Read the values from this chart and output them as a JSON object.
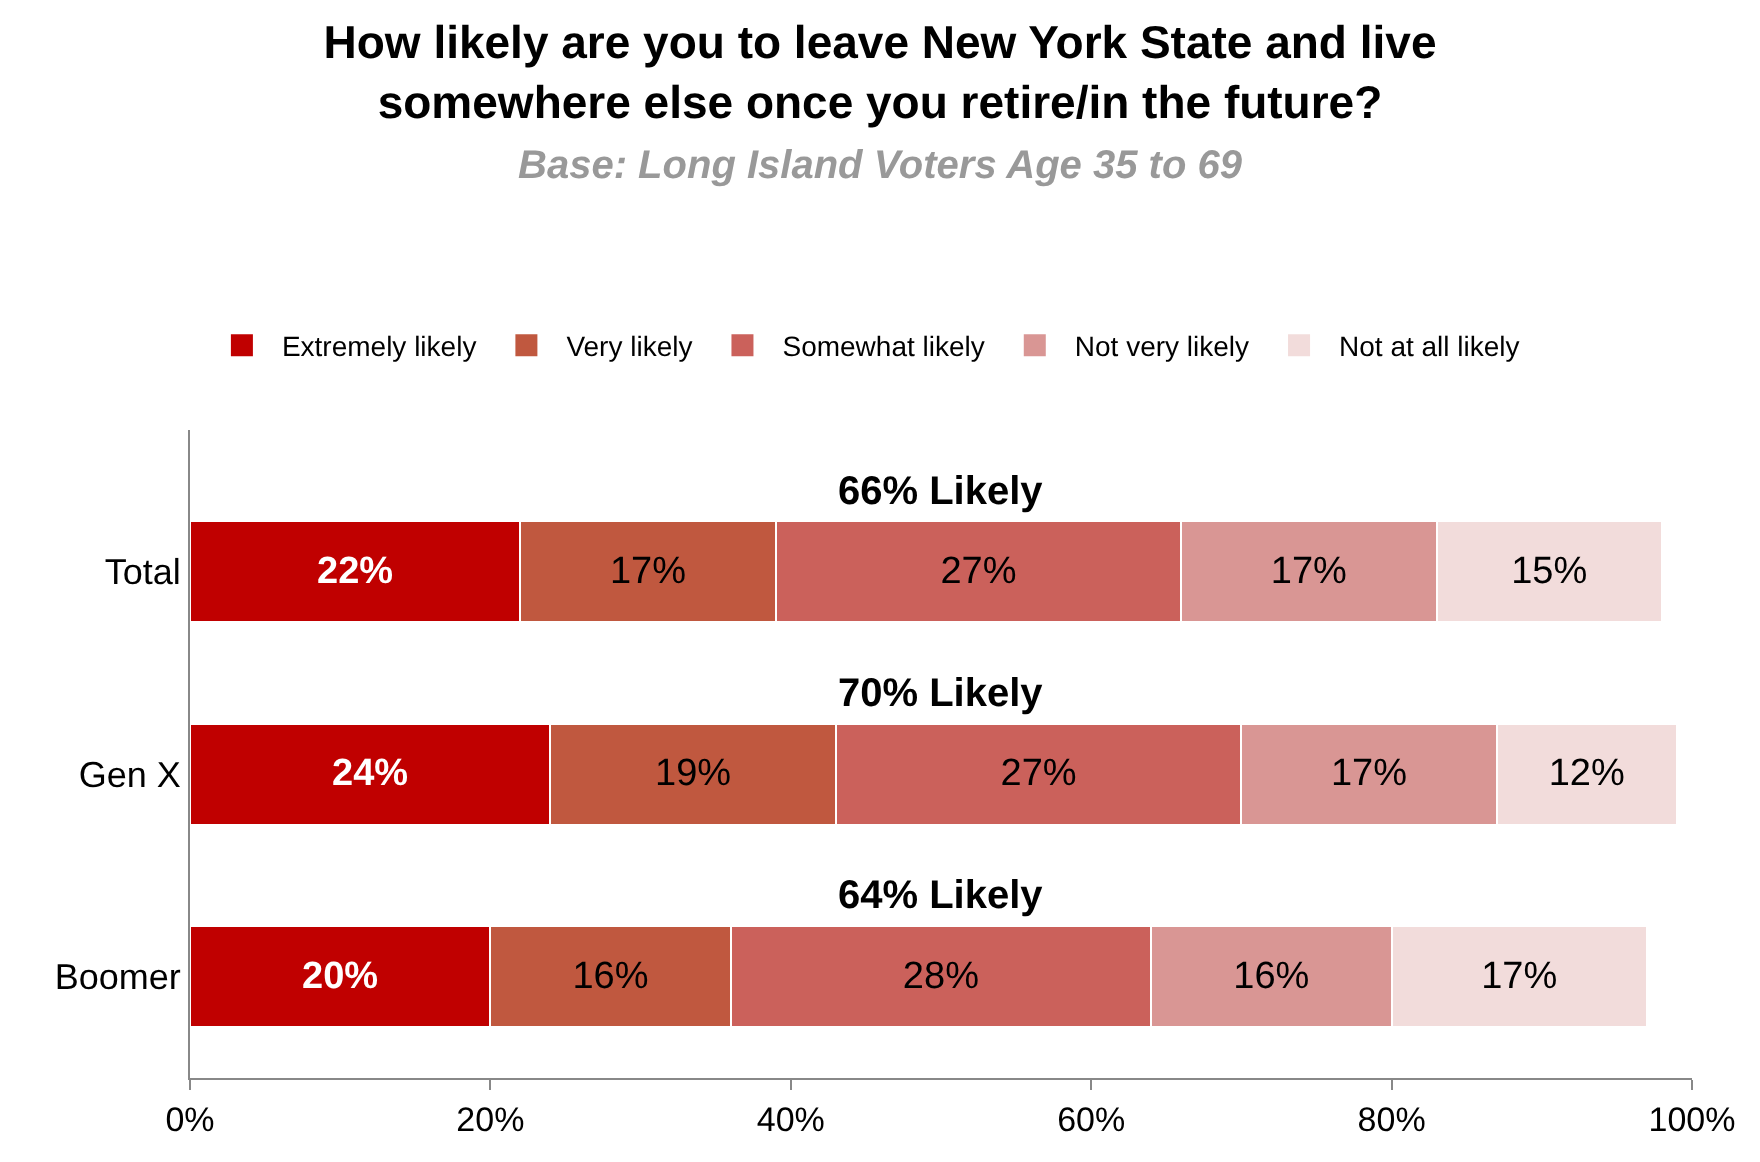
{
  "chart_data": {
    "type": "bar",
    "orientation": "horizontal",
    "stacked": true,
    "title": "How likely are you to leave New York State and live somewhere else once you retire/in the future?",
    "subtitle": "Base: Long Island Voters Age 35 to 69",
    "categories": [
      "Total",
      "Gen X",
      "Boomer"
    ],
    "series": [
      {
        "name": "Extremely likely",
        "color": "#c00000",
        "values": [
          22,
          24,
          20
        ],
        "value_labels": [
          "22%",
          "24%",
          "20%"
        ]
      },
      {
        "name": "Very likely",
        "color": "#c0583f",
        "values": [
          17,
          19,
          16
        ],
        "value_labels": [
          "17%",
          "19%",
          "16%"
        ]
      },
      {
        "name": "Somewhat likely",
        "color": "#cb615b",
        "values": [
          27,
          27,
          28
        ],
        "value_labels": [
          "27%",
          "27%",
          "28%"
        ]
      },
      {
        "name": "Not very likely",
        "color": "#d99694",
        "values": [
          17,
          17,
          16
        ],
        "value_labels": [
          "17%",
          "17%",
          "16%"
        ]
      },
      {
        "name": "Not at all likely",
        "color": "#f2dcdb",
        "values": [
          15,
          12,
          17
        ],
        "value_labels": [
          "15%",
          "12%",
          "17%"
        ]
      }
    ],
    "annotations": [
      "66% Likely",
      "70% Likely",
      "64% Likely"
    ],
    "xlim": [
      0,
      100
    ],
    "xticks": [
      {
        "value": 0,
        "label": "0%"
      },
      {
        "value": 20,
        "label": "20%"
      },
      {
        "value": 40,
        "label": "40%"
      },
      {
        "value": 60,
        "label": "60%"
      },
      {
        "value": 80,
        "label": "80%"
      },
      {
        "value": 100,
        "label": "100%"
      }
    ],
    "legend": "top"
  }
}
